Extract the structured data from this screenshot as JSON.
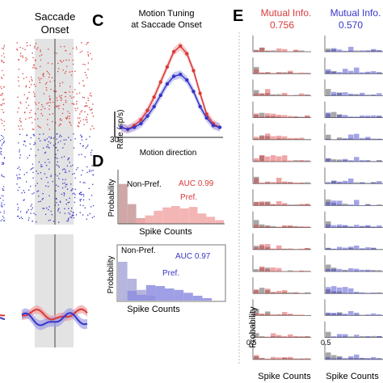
{
  "panel_letters": {
    "c": "C",
    "d": "D",
    "e": "E"
  },
  "raster": {
    "title_line1": "Saccade",
    "title_line2": "Onset"
  },
  "tuning": {
    "title_line1": "Motion Tuning",
    "title_line2": "at Saccade Onset",
    "ylabel": "Rate (sp/s)",
    "scale_value": "30",
    "xlabel": "Motion direction"
  },
  "auc_top": {
    "ylabel": "Probability",
    "non_pref": "Non-Pref.",
    "pref": "Pref.",
    "auc": "AUC 0.99",
    "xlabel": "Spike Counts"
  },
  "auc_bottom": {
    "ylabel": "Probability",
    "non_pref": "Non-Pref.",
    "pref": "Pref.",
    "auc": "AUC 0.97",
    "xlabel": "Spike Counts"
  },
  "mi_left": {
    "title": "Mutual Info.",
    "value": "0.756"
  },
  "mi_right": {
    "title": "Mutual Info.",
    "value": "0.570"
  },
  "panel_e": {
    "ylabel": "Probability",
    "tick": "0.5",
    "xlabel": "Spike Counts"
  },
  "colors": {
    "red": "#d93a3a",
    "blue": "#3636c8",
    "gray": "#888888",
    "light_red": "#f0a0a0",
    "light_blue": "#9e9ee6"
  },
  "chart_data": [
    {
      "type": "line",
      "title": "Motion Tuning at Saccade Onset",
      "xlabel": "Motion direction",
      "ylabel": "Rate (sp/s)",
      "x": [
        1,
        2,
        3,
        4,
        5,
        6,
        7,
        8,
        9,
        10,
        11,
        12,
        13,
        14,
        15,
        16
      ],
      "series": [
        {
          "values": [
            4,
            3,
            5,
            8,
            13,
            20,
            28,
            36,
            44,
            47,
            43,
            34,
            22,
            11,
            6,
            4
          ]
        },
        {
          "values": [
            4,
            3,
            4,
            6,
            10,
            15,
            21,
            27,
            31,
            32,
            29,
            23,
            15,
            9,
            5,
            4
          ]
        }
      ],
      "ylim": [
        0,
        50
      ]
    },
    {
      "type": "bar",
      "ylabel": "Probability",
      "xlabel": "Spike Counts",
      "series": [
        {
          "name": "Non-Pref.",
          "values": [
            0.85,
            0.42,
            0.12,
            0.0,
            0.0,
            0.0,
            0.0,
            0.0,
            0.0,
            0.0,
            0.0,
            0.0
          ]
        },
        {
          "name": "Pref.",
          "values": [
            0.0,
            0.0,
            0.1,
            0.18,
            0.28,
            0.35,
            0.38,
            0.33,
            0.36,
            0.22,
            0.15,
            0.08
          ]
        }
      ]
    },
    {
      "type": "bar",
      "ylabel": "Probability",
      "xlabel": "Spike Counts",
      "series": [
        {
          "name": "Non-Pref.",
          "values": [
            0.8,
            0.45,
            0.22,
            0.1,
            0.0,
            0.0,
            0.0,
            0.0,
            0.0,
            0.0
          ]
        },
        {
          "name": "Pref.",
          "values": [
            0.0,
            0.2,
            0.12,
            0.32,
            0.3,
            0.25,
            0.22,
            0.16,
            0.1,
            0.05
          ]
        }
      ]
    }
  ]
}
